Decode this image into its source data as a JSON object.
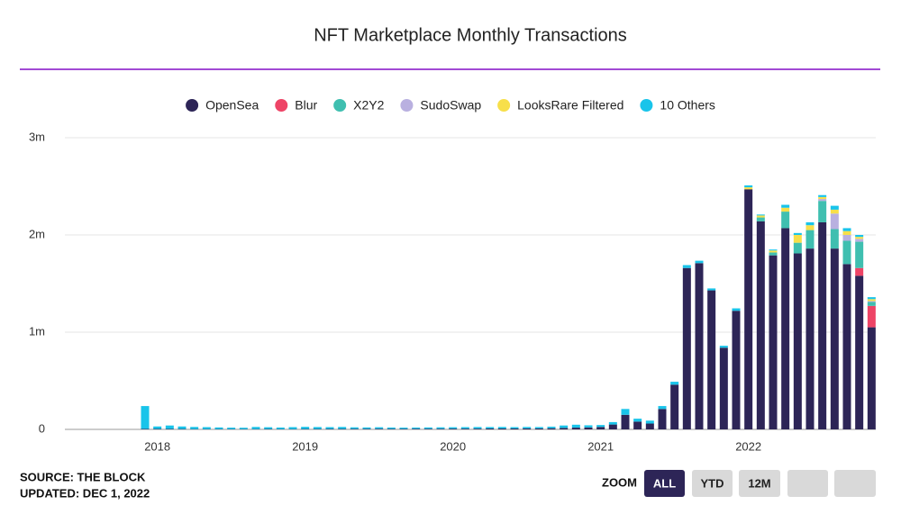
{
  "chart_data": {
    "type": "stacked_bar",
    "title": "NFT Marketplace Monthly Transactions",
    "categories": [
      null,
      "2018",
      null,
      null,
      null,
      null,
      null,
      null,
      null,
      null,
      null,
      null,
      null,
      "2019",
      null,
      null,
      null,
      null,
      null,
      null,
      null,
      null,
      null,
      null,
      null,
      "2020",
      null,
      null,
      null,
      null,
      null,
      null,
      null,
      null,
      null,
      null,
      null,
      "2021",
      null,
      null,
      null,
      null,
      null,
      null,
      null,
      null,
      null,
      null,
      null,
      "2022",
      null,
      null,
      null,
      null,
      null,
      null,
      null,
      null,
      null,
      null
    ],
    "series": [
      {
        "name": "OpenSea",
        "color": "#2d2557",
        "values": [
          5000,
          5000,
          5000,
          4000,
          3000,
          3000,
          3000,
          3000,
          3000,
          3000,
          4000,
          3000,
          3000,
          4000,
          4000,
          5000,
          5000,
          6000,
          6000,
          7000,
          6000,
          6000,
          7000,
          7000,
          7000,
          8000,
          8000,
          8000,
          9000,
          9000,
          9000,
          10000,
          10000,
          12000,
          15000,
          18000,
          20000,
          25000,
          50000,
          150000,
          80000,
          60000,
          210000,
          460000,
          1660000,
          1710000,
          1430000,
          840000,
          1220000,
          2470000,
          2140000,
          1790000,
          2070000,
          1810000,
          1860000,
          2130000,
          1860000,
          1700000,
          1580000,
          1050000
        ]
      },
      {
        "name": "Blur",
        "color": "#ee4466",
        "values": [
          0,
          0,
          0,
          0,
          0,
          0,
          0,
          0,
          0,
          0,
          0,
          0,
          0,
          0,
          0,
          0,
          0,
          0,
          0,
          0,
          0,
          0,
          0,
          0,
          0,
          0,
          0,
          0,
          0,
          0,
          0,
          0,
          0,
          0,
          0,
          0,
          0,
          0,
          0,
          0,
          0,
          0,
          0,
          0,
          0,
          0,
          0,
          0,
          0,
          0,
          0,
          0,
          0,
          0,
          0,
          0,
          0,
          0,
          80000,
          220000
        ]
      },
      {
        "name": "X2Y2",
        "color": "#3fbfb0",
        "values": [
          0,
          0,
          0,
          0,
          0,
          0,
          0,
          0,
          0,
          0,
          0,
          0,
          0,
          0,
          0,
          0,
          0,
          0,
          0,
          0,
          0,
          0,
          0,
          0,
          0,
          0,
          0,
          0,
          0,
          0,
          0,
          0,
          0,
          0,
          0,
          0,
          0,
          0,
          0,
          0,
          0,
          0,
          0,
          0,
          0,
          0,
          0,
          0,
          0,
          0,
          40000,
          30000,
          170000,
          110000,
          190000,
          220000,
          200000,
          240000,
          270000,
          40000
        ]
      },
      {
        "name": "SudoSwap",
        "color": "#b9b0e0",
        "values": [
          0,
          0,
          0,
          0,
          0,
          0,
          0,
          0,
          0,
          0,
          0,
          0,
          0,
          0,
          0,
          0,
          0,
          0,
          0,
          0,
          0,
          0,
          0,
          0,
          0,
          0,
          0,
          0,
          0,
          0,
          0,
          0,
          0,
          0,
          0,
          0,
          0,
          0,
          0,
          0,
          0,
          0,
          0,
          0,
          0,
          0,
          0,
          0,
          0,
          0,
          0,
          0,
          0,
          0,
          0,
          20000,
          160000,
          60000,
          30000,
          10000
        ]
      },
      {
        "name": "LooksRare Filtered",
        "color": "#f7df4a",
        "values": [
          0,
          0,
          0,
          0,
          0,
          0,
          0,
          0,
          0,
          0,
          0,
          0,
          0,
          0,
          0,
          0,
          0,
          0,
          0,
          0,
          0,
          0,
          0,
          0,
          0,
          0,
          0,
          0,
          0,
          0,
          0,
          0,
          0,
          0,
          0,
          0,
          0,
          0,
          0,
          0,
          0,
          0,
          0,
          0,
          0,
          0,
          0,
          0,
          0,
          20000,
          20000,
          20000,
          40000,
          80000,
          50000,
          20000,
          40000,
          40000,
          20000,
          20000
        ]
      },
      {
        "name": "10 Others",
        "color": "#19c4ea",
        "values": [
          235000,
          25000,
          35000,
          26000,
          22000,
          20000,
          17000,
          15000,
          14000,
          22000,
          18000,
          16000,
          20000,
          22000,
          20000,
          18000,
          20000,
          15000,
          14000,
          15000,
          13000,
          12000,
          12000,
          13000,
          14000,
          14000,
          15000,
          16000,
          15000,
          16000,
          14000,
          15000,
          14000,
          16000,
          25000,
          30000,
          22000,
          20000,
          25000,
          60000,
          30000,
          30000,
          30000,
          30000,
          30000,
          25000,
          20000,
          20000,
          25000,
          20000,
          10000,
          10000,
          30000,
          20000,
          30000,
          20000,
          40000,
          30000,
          20000,
          20000
        ]
      }
    ],
    "ylim": [
      0,
      3000000
    ],
    "yticks": [
      0,
      {
        "value": 1000000,
        "label": "1m"
      },
      {
        "value": 2000000,
        "label": "2m"
      },
      {
        "value": 3000000,
        "label": "3m"
      }
    ],
    "grid": true,
    "legend": "top"
  },
  "source": "SOURCE: THE BLOCK",
  "updated": "UPDATED: DEC 1, 2022",
  "zoom": {
    "label": "ZOOM",
    "buttons": [
      "ALL",
      "YTD",
      "12M"
    ]
  }
}
